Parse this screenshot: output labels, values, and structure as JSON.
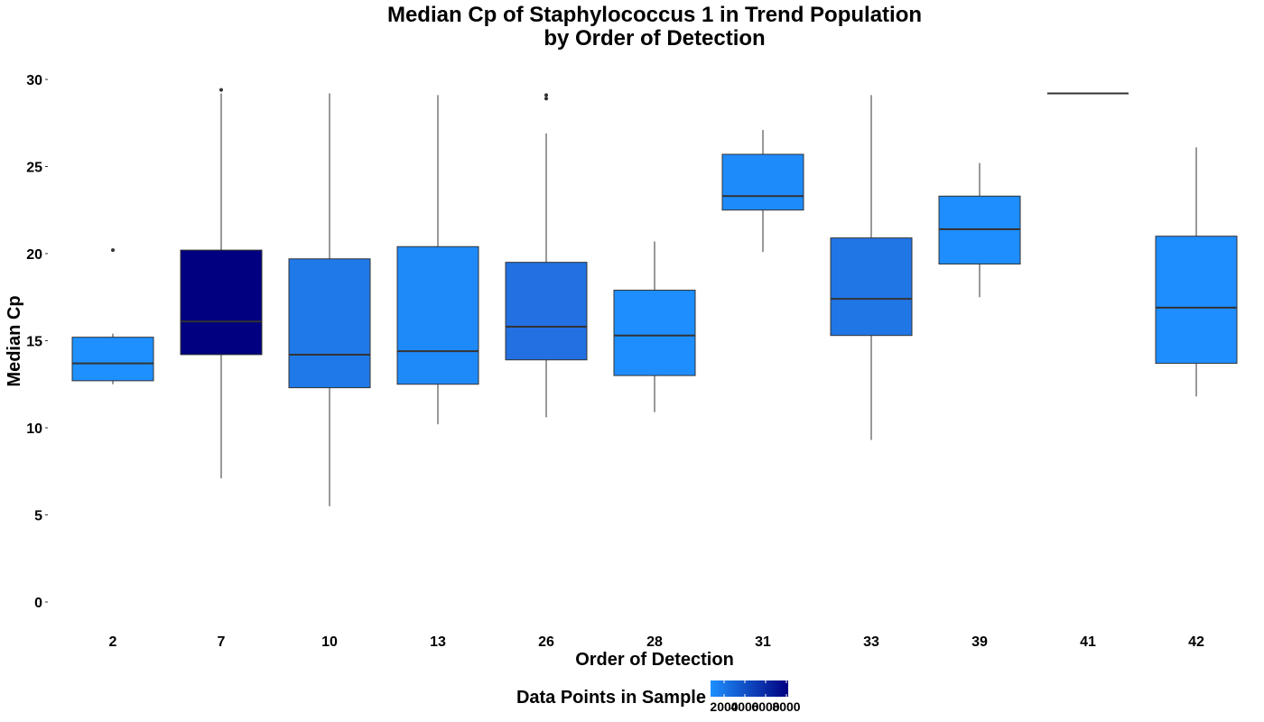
{
  "chart_data": {
    "type": "boxplot",
    "title": "Median Cp of Staphylococcus 1 in Trend Population\nby Order of Detection",
    "xlabel": "Order of Detection",
    "ylabel": "Median Cp",
    "categories": [
      "2",
      "7",
      "10",
      "13",
      "26",
      "28",
      "31",
      "33",
      "39",
      "41",
      "42"
    ],
    "ylim": [
      0,
      30
    ],
    "yticks": [
      0,
      5,
      10,
      15,
      20,
      25,
      30
    ],
    "grid": false,
    "boxes": [
      {
        "category": "2",
        "whisker_low": 12.5,
        "q1": 12.7,
        "median": 13.7,
        "q3": 15.2,
        "whisker_high": 15.4,
        "outliers": [
          20.2
        ],
        "fill": "#1E90FF"
      },
      {
        "category": "7",
        "whisker_low": 7.1,
        "q1": 14.2,
        "median": 16.1,
        "q3": 20.2,
        "whisker_high": 29.2,
        "outliers": [
          29.4
        ],
        "fill": "#000080"
      },
      {
        "category": "10",
        "whisker_low": 5.5,
        "q1": 12.3,
        "median": 14.2,
        "q3": 19.7,
        "whisker_high": 29.2,
        "outliers": [],
        "fill": "#2079E9"
      },
      {
        "category": "13",
        "whisker_low": 10.2,
        "q1": 12.5,
        "median": 14.4,
        "q3": 20.4,
        "whisker_high": 29.1,
        "outliers": [],
        "fill": "#1E8AFA"
      },
      {
        "category": "26",
        "whisker_low": 10.6,
        "q1": 13.9,
        "median": 15.8,
        "q3": 19.5,
        "whisker_high": 26.9,
        "outliers": [
          28.9,
          29.1
        ],
        "fill": "#2270E1"
      },
      {
        "category": "28",
        "whisker_low": 10.9,
        "q1": 13.0,
        "median": 15.3,
        "q3": 17.9,
        "whisker_high": 20.7,
        "outliers": [],
        "fill": "#1E8EFE"
      },
      {
        "category": "31",
        "whisker_low": 20.1,
        "q1": 22.5,
        "median": 23.3,
        "q3": 25.7,
        "whisker_high": 27.1,
        "outliers": [],
        "fill": "#1E8BFB"
      },
      {
        "category": "33",
        "whisker_low": 9.3,
        "q1": 15.3,
        "median": 17.4,
        "q3": 20.9,
        "whisker_high": 29.1,
        "outliers": [],
        "fill": "#2176E6"
      },
      {
        "category": "39",
        "whisker_low": 17.5,
        "q1": 19.4,
        "median": 21.4,
        "q3": 23.3,
        "whisker_high": 25.2,
        "outliers": [],
        "fill": "#1E8DFD"
      },
      {
        "category": "41",
        "whisker_low": 29.2,
        "q1": 29.2,
        "median": 29.2,
        "q3": 29.2,
        "whisker_high": 29.2,
        "outliers": []
      },
      {
        "category": "42",
        "whisker_low": 11.8,
        "q1": 13.7,
        "median": 16.9,
        "q3": 21.0,
        "whisker_high": 26.1,
        "outliers": [],
        "fill": "#1E8DFD"
      }
    ],
    "legend": {
      "title": "Data Points in Sample",
      "ticks": [
        2000,
        4000,
        6000,
        8000
      ],
      "low_color": "#1E90FF",
      "high_color": "#000080",
      "position": "bottom"
    }
  }
}
